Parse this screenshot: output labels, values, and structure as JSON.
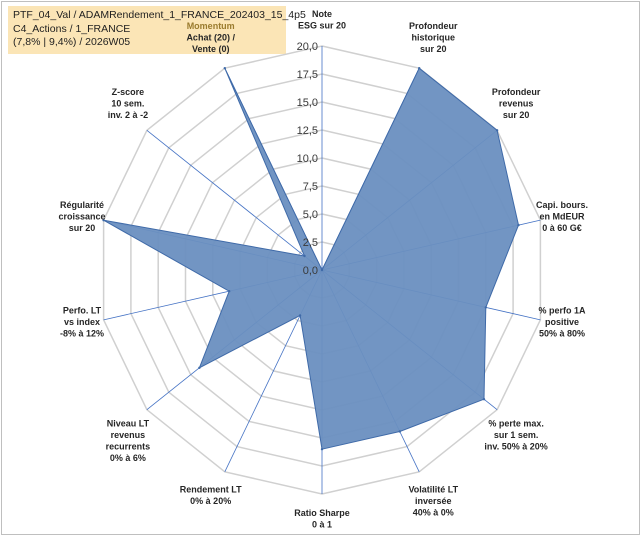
{
  "title": {
    "line1": "PTF_04_Val / ADAMRendement_1_FRANCE_202403_15_4p5",
    "line2": "C4_Actions / 1_FRANCE",
    "line3": "(7,8% | 9,4%) / 2026W05"
  },
  "chart_data": {
    "type": "radar",
    "rmin": 0,
    "rmax": 20,
    "ticks": [
      "0,0",
      "2,5",
      "5,0",
      "7,5",
      "10,0",
      "12,5",
      "15,0",
      "17,5",
      "20,0"
    ],
    "axes": [
      {
        "lines": [
          "Note",
          "ESG sur 20"
        ],
        "value": 0,
        "highlight": false
      },
      {
        "lines": [
          "Profondeur",
          "historique",
          "sur 20"
        ],
        "value": 20,
        "highlight": false
      },
      {
        "lines": [
          "Profondeur",
          "revenus",
          "sur 20"
        ],
        "value": 20,
        "highlight": false
      },
      {
        "lines": [
          "Capi. bours.",
          "en MdEUR",
          "0 à 60 G€"
        ],
        "value": 18,
        "highlight": false
      },
      {
        "lines": [
          "% perfo 1A",
          "positive",
          "50% à 80%"
        ],
        "value": 15,
        "highlight": false
      },
      {
        "lines": [
          "% perte max.",
          "sur 1 sem.",
          "inv. 50% à 20%"
        ],
        "value": 18.5,
        "highlight": false
      },
      {
        "lines": [
          "Volatilité LT",
          "inversée",
          "40% à 0%"
        ],
        "value": 16,
        "highlight": false
      },
      {
        "lines": [
          "Ratio Sharpe",
          "0 à 1"
        ],
        "value": 16,
        "highlight": false
      },
      {
        "lines": [
          "Rendement LT",
          "0% à 20%"
        ],
        "value": 4.5,
        "highlight": false
      },
      {
        "lines": [
          "Niveau LT",
          "revenus",
          "recurrents",
          "0% à 6%"
        ],
        "value": 14,
        "highlight": false
      },
      {
        "lines": [
          "Perfo. LT",
          "vs index",
          "-8% à 12%"
        ],
        "value": 8.5,
        "highlight": false
      },
      {
        "lines": [
          "Régularité",
          "croissance",
          "sur 20"
        ],
        "value": 20,
        "highlight": false
      },
      {
        "lines": [
          "Z-score",
          "10 sem.",
          "inv. 2 à -2"
        ],
        "value": 2,
        "highlight": false
      },
      {
        "lines": [
          "Momentum",
          "Achat (20) /",
          "Vente (0)"
        ],
        "value": 20,
        "highlight": true
      }
    ],
    "colors": {
      "fill": "#6a8fc0",
      "stroke": "#3f6aa8",
      "grid": "#d0d0d0",
      "spoke": "#4472c4"
    }
  }
}
